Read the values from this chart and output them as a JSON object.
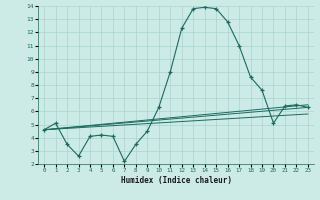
{
  "xlabel": "Humidex (Indice chaleur)",
  "background_color": "#cceae6",
  "grid_color": "#aad4cf",
  "line_color": "#1a6b5e",
  "xlim": [
    -0.5,
    23.5
  ],
  "ylim": [
    2,
    14
  ],
  "yticks": [
    2,
    3,
    4,
    5,
    6,
    7,
    8,
    9,
    10,
    11,
    12,
    13,
    14
  ],
  "xticks": [
    0,
    1,
    2,
    3,
    4,
    5,
    6,
    7,
    8,
    9,
    10,
    11,
    12,
    13,
    14,
    15,
    16,
    17,
    18,
    19,
    20,
    21,
    22,
    23
  ],
  "series1_x": [
    0,
    1,
    2,
    3,
    4,
    5,
    6,
    7,
    8,
    9,
    10,
    11,
    12,
    13,
    14,
    15,
    16,
    17,
    18,
    19,
    20,
    21,
    22,
    23
  ],
  "series1_y": [
    4.6,
    5.1,
    3.5,
    2.6,
    4.1,
    4.2,
    4.1,
    2.2,
    3.5,
    4.5,
    6.3,
    9.0,
    12.3,
    13.8,
    13.9,
    13.8,
    12.8,
    11.0,
    8.6,
    7.6,
    5.1,
    6.4,
    6.5,
    6.3
  ],
  "series2_x": [
    0,
    23
  ],
  "series2_y": [
    4.6,
    6.5
  ],
  "series3_x": [
    0,
    23
  ],
  "series3_y": [
    4.6,
    6.3
  ],
  "series4_x": [
    0,
    23
  ],
  "series4_y": [
    4.6,
    5.8
  ]
}
